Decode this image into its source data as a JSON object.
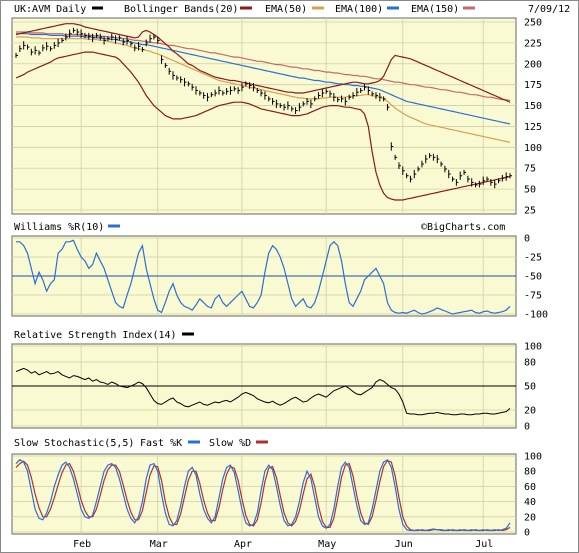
{
  "header": {
    "symbol": "UK:AVM",
    "period": "Daily",
    "date": "7/09/12",
    "watermark": "©BigCharts.com"
  },
  "legend": {
    "price": {
      "label": "UK:AVM Daily",
      "color": "#000000"
    },
    "bollinger": {
      "label": "Bollinger Bands(20)",
      "color": "#8b1a1a"
    },
    "ema50": {
      "label": "EMA(50)",
      "color": "#d9a050"
    },
    "ema100": {
      "label": "EMA(100)",
      "color": "#2a6fd6"
    },
    "ema150": {
      "label": "EMA(150)",
      "color": "#c46a6a"
    }
  },
  "colors": {
    "panel_bg": "#fafad2",
    "grid": "#cfcfa8",
    "price": "#000000",
    "bollinger": "#8b1a1a",
    "ema50": "#d9a050",
    "ema100": "#2a6fd6",
    "ema150": "#c46a6a",
    "williams": "#2a6fd6",
    "rsi": "#000000",
    "stoch_k": "#2a6fd6",
    "stoch_d": "#b03030",
    "ref_line": "#1f4fa0"
  },
  "x_axis": {
    "labels": [
      "Feb",
      "Mar",
      "Apr",
      "May",
      "Jun",
      "Jul"
    ],
    "label_day_index": [
      17,
      37,
      59,
      81,
      101,
      122
    ],
    "total_days": 130
  },
  "chart_data": [
    {
      "type": "line",
      "name": "price",
      "ylim": [
        25,
        250
      ],
      "y_ticks": [
        250,
        225,
        200,
        175,
        150,
        125,
        100,
        75,
        50,
        25
      ],
      "close": [
        210,
        218,
        222,
        220,
        214,
        216,
        213,
        219,
        221,
        218,
        222,
        225,
        228,
        232,
        236,
        240,
        238,
        236,
        234,
        233,
        231,
        234,
        232,
        228,
        230,
        232,
        229,
        231,
        226,
        228,
        224,
        219,
        221,
        217,
        225,
        230,
        232,
        228,
        205,
        198,
        191,
        186,
        183,
        181,
        178,
        176,
        172,
        168,
        165,
        162,
        160,
        163,
        165,
        168,
        165,
        167,
        168,
        170,
        168,
        172,
        176,
        174,
        172,
        168,
        165,
        162,
        158,
        155,
        152,
        150,
        148,
        150,
        146,
        144,
        148,
        152,
        155,
        152,
        158,
        162,
        165,
        167,
        164,
        160,
        157,
        158,
        155,
        160,
        162,
        166,
        168,
        172,
        168,
        164,
        162,
        160,
        158,
        148,
        101,
        88,
        78,
        72,
        66,
        62,
        68,
        74,
        80,
        86,
        90,
        88,
        86,
        80,
        74,
        68,
        62,
        58,
        66,
        70,
        62,
        58,
        55,
        56,
        60,
        62,
        58,
        56,
        60,
        63,
        65,
        66
      ],
      "bollinger_upper": [
        235,
        236,
        237,
        238,
        239,
        240,
        241,
        242,
        243,
        244,
        245,
        246,
        247,
        248,
        248,
        248,
        247,
        246,
        244,
        243,
        242,
        241,
        240,
        239,
        238,
        237,
        236,
        235,
        234,
        233,
        232,
        231,
        232,
        238,
        240,
        238,
        235,
        232,
        228,
        224,
        220,
        215,
        212,
        208,
        204,
        200,
        198,
        195,
        192,
        190,
        188,
        186,
        184,
        183,
        182,
        181,
        180,
        180,
        179,
        178,
        177,
        176,
        175,
        174,
        173,
        172,
        171,
        170,
        169,
        168,
        167,
        166,
        166,
        165,
        165,
        165,
        166,
        167,
        168,
        169,
        170,
        171,
        172,
        173,
        174,
        175,
        176,
        177,
        178,
        178,
        177,
        176,
        176,
        177,
        178,
        180,
        185,
        195,
        205,
        210,
        209,
        208,
        207,
        206,
        204,
        202,
        200,
        198,
        196,
        194,
        192,
        190,
        188,
        186,
        184,
        182,
        180,
        178,
        176,
        174,
        172,
        170,
        168,
        166,
        164,
        162,
        160,
        158,
        156,
        154
      ],
      "bollinger_lower": [
        183,
        185,
        187,
        190,
        192,
        194,
        196,
        198,
        200,
        202,
        205,
        207,
        208,
        209,
        210,
        211,
        212,
        213,
        214,
        214,
        214,
        213,
        212,
        211,
        210,
        209,
        208,
        205,
        200,
        195,
        190,
        184,
        178,
        170,
        162,
        156,
        150,
        146,
        142,
        138,
        136,
        134,
        134,
        134,
        135,
        136,
        137,
        138,
        140,
        142,
        144,
        146,
        148,
        150,
        151,
        152,
        153,
        154,
        154,
        154,
        153,
        152,
        150,
        148,
        146,
        145,
        144,
        143,
        142,
        141,
        140,
        139,
        138,
        138,
        138,
        139,
        140,
        142,
        144,
        146,
        148,
        149,
        150,
        150,
        150,
        149,
        148,
        148,
        147,
        146,
        145,
        140,
        125,
        95,
        70,
        55,
        45,
        40,
        38,
        37,
        37,
        37,
        38,
        39,
        40,
        41,
        42,
        43,
        44,
        45,
        46,
        47,
        48,
        49,
        50,
        51,
        52,
        53,
        54,
        55,
        56,
        57,
        58,
        59,
        60,
        61,
        62,
        63,
        64,
        65
      ],
      "ema50": [
        232,
        232,
        232,
        232,
        231,
        231,
        231,
        230,
        230,
        230,
        230,
        230,
        230,
        230,
        230,
        230,
        230,
        230,
        230,
        229,
        229,
        229,
        228,
        228,
        227,
        226,
        225,
        224,
        223,
        222,
        220,
        219,
        218,
        217,
        216,
        215,
        213,
        212,
        210,
        208,
        206,
        204,
        202,
        200,
        198,
        196,
        194,
        192,
        190,
        188,
        186,
        184,
        182,
        180,
        179,
        178,
        177,
        176,
        175,
        174,
        173,
        172,
        171,
        170,
        169,
        168,
        167,
        166,
        165,
        164,
        163,
        162,
        161,
        160,
        159,
        159,
        158,
        158,
        158,
        158,
        159,
        159,
        160,
        160,
        160,
        160,
        160,
        161,
        161,
        162,
        162,
        163,
        163,
        162,
        161,
        160,
        158,
        155,
        151,
        147,
        144,
        141,
        138,
        136,
        134,
        132,
        130,
        128,
        127,
        126,
        125,
        124,
        123,
        122,
        121,
        120,
        119,
        118,
        117,
        116,
        115,
        114,
        113,
        112,
        111,
        110,
        109,
        108,
        107,
        106
      ],
      "ema100": [
        236,
        236,
        236,
        236,
        235,
        235,
        235,
        235,
        235,
        234,
        234,
        234,
        234,
        233,
        233,
        233,
        233,
        233,
        232,
        232,
        232,
        231,
        231,
        230,
        230,
        229,
        229,
        228,
        227,
        227,
        226,
        225,
        224,
        223,
        223,
        222,
        221,
        220,
        219,
        218,
        217,
        216,
        215,
        214,
        213,
        212,
        211,
        210,
        209,
        208,
        207,
        206,
        205,
        204,
        203,
        202,
        201,
        200,
        199,
        198,
        197,
        196,
        195,
        194,
        193,
        192,
        191,
        190,
        189,
        188,
        187,
        186,
        185,
        184,
        183,
        183,
        182,
        181,
        180,
        180,
        179,
        178,
        178,
        177,
        176,
        176,
        175,
        175,
        174,
        174,
        173,
        173,
        172,
        171,
        170,
        169,
        167,
        165,
        163,
        161,
        159,
        157,
        155,
        154,
        153,
        152,
        151,
        150,
        149,
        148,
        147,
        146,
        145,
        144,
        143,
        142,
        141,
        140,
        139,
        138,
        137,
        136,
        135,
        134,
        133,
        132,
        131,
        130,
        129,
        128
      ],
      "ema150": [
        238,
        238,
        238,
        238,
        237,
        237,
        237,
        237,
        236,
        236,
        236,
        236,
        236,
        235,
        235,
        235,
        235,
        235,
        234,
        234,
        234,
        233,
        233,
        233,
        232,
        232,
        231,
        231,
        230,
        230,
        229,
        228,
        228,
        227,
        227,
        226,
        225,
        225,
        224,
        223,
        222,
        222,
        221,
        220,
        219,
        218,
        218,
        217,
        216,
        215,
        214,
        213,
        213,
        212,
        211,
        210,
        209,
        208,
        208,
        207,
        206,
        205,
        204,
        203,
        203,
        202,
        201,
        200,
        199,
        199,
        198,
        197,
        196,
        196,
        195,
        194,
        194,
        193,
        192,
        192,
        191,
        190,
        190,
        189,
        189,
        188,
        187,
        187,
        186,
        186,
        185,
        185,
        184,
        183,
        182,
        182,
        181,
        180,
        179,
        178,
        178,
        177,
        176,
        175,
        175,
        174,
        173,
        172,
        172,
        171,
        170,
        169,
        169,
        168,
        167,
        166,
        166,
        165,
        164,
        163,
        163,
        162,
        161,
        160,
        160,
        159,
        158,
        157,
        157,
        156
      ]
    },
    {
      "type": "line",
      "name": "williams",
      "title": "Williams %R(10)",
      "ylim": [
        -100,
        0
      ],
      "y_ticks": [
        0,
        -25,
        -50,
        -75,
        -100
      ],
      "ref_line": -50,
      "values": [
        -5,
        -5,
        -10,
        -20,
        -40,
        -60,
        -45,
        -55,
        -70,
        -60,
        -55,
        -20,
        -15,
        -5,
        -5,
        -3,
        -15,
        -25,
        -30,
        -40,
        -35,
        -20,
        -30,
        -40,
        -55,
        -70,
        -85,
        -90,
        -92,
        -75,
        -60,
        -40,
        -20,
        -10,
        -40,
        -60,
        -80,
        -95,
        -98,
        -85,
        -70,
        -60,
        -75,
        -85,
        -90,
        -92,
        -95,
        -88,
        -80,
        -85,
        -90,
        -92,
        -80,
        -75,
        -85,
        -90,
        -85,
        -80,
        -75,
        -70,
        -80,
        -90,
        -92,
        -85,
        -75,
        -45,
        -20,
        -10,
        -15,
        -25,
        -40,
        -60,
        -80,
        -90,
        -85,
        -80,
        -90,
        -92,
        -85,
        -70,
        -50,
        -30,
        -10,
        -5,
        -10,
        -30,
        -60,
        -85,
        -90,
        -80,
        -70,
        -55,
        -50,
        -45,
        -40,
        -50,
        -60,
        -85,
        -95,
        -98,
        -99,
        -98,
        -99,
        -97,
        -95,
        -98,
        -100,
        -99,
        -97,
        -95,
        -92,
        -94,
        -96,
        -98,
        -100,
        -99,
        -98,
        -97,
        -96,
        -95,
        -98,
        -99,
        -97,
        -96,
        -98,
        -99,
        -98,
        -97,
        -95,
        -90
      ]
    },
    {
      "type": "line",
      "name": "rsi",
      "title": "Relative Strength Index(14)",
      "ylim": [
        0,
        100
      ],
      "y_ticks": [
        100,
        80,
        50,
        20,
        0
      ],
      "ref_line": 50,
      "values": [
        68,
        70,
        72,
        70,
        66,
        68,
        64,
        66,
        68,
        65,
        66,
        68,
        64,
        62,
        60,
        63,
        62,
        60,
        58,
        60,
        56,
        58,
        55,
        54,
        52,
        55,
        53,
        50,
        49,
        48,
        50,
        52,
        55,
        53,
        48,
        40,
        32,
        28,
        27,
        30,
        33,
        35,
        30,
        28,
        25,
        24,
        26,
        28,
        30,
        27,
        26,
        28,
        30,
        29,
        31,
        32,
        30,
        33,
        36,
        40,
        42,
        40,
        38,
        34,
        32,
        30,
        29,
        31,
        28,
        26,
        28,
        31,
        34,
        36,
        33,
        30,
        31,
        35,
        38,
        40,
        38,
        36,
        40,
        44,
        46,
        48,
        50,
        47,
        43,
        40,
        39,
        42,
        45,
        48,
        55,
        58,
        56,
        52,
        48,
        46,
        40,
        30,
        16,
        15,
        15,
        14,
        14,
        15,
        16,
        16,
        17,
        16,
        15,
        15,
        14,
        14,
        15,
        15,
        14,
        14,
        15,
        15,
        16,
        16,
        15,
        15,
        16,
        17,
        18,
        22
      ]
    },
    {
      "type": "line",
      "name": "stochastic",
      "title": "Slow Stochastic(5,5)",
      "ylim": [
        0,
        100
      ],
      "y_ticks": [
        100,
        80,
        60,
        40,
        20,
        0
      ],
      "series": [
        {
          "name": "Fast %K",
          "values": [
            90,
            95,
            92,
            80,
            55,
            30,
            18,
            16,
            25,
            40,
            60,
            75,
            88,
            92,
            85,
            70,
            50,
            30,
            20,
            18,
            22,
            40,
            60,
            80,
            88,
            90,
            85,
            70,
            50,
            30,
            18,
            12,
            20,
            40,
            70,
            88,
            90,
            80,
            50,
            25,
            10,
            8,
            15,
            35,
            60,
            80,
            85,
            75,
            50,
            30,
            18,
            12,
            20,
            45,
            70,
            85,
            88,
            78,
            55,
            30,
            12,
            8,
            10,
            25,
            55,
            80,
            88,
            82,
            60,
            35,
            15,
            8,
            10,
            20,
            40,
            65,
            80,
            70,
            45,
            20,
            8,
            5,
            10,
            30,
            60,
            85,
            92,
            85,
            60,
            35,
            15,
            10,
            12,
            30,
            55,
            80,
            92,
            95,
            85,
            60,
            30,
            10,
            3,
            2,
            2,
            3,
            2,
            2,
            3,
            4,
            3,
            2,
            2,
            3,
            2,
            2,
            3,
            2,
            2,
            3,
            2,
            2,
            3,
            2,
            2,
            3,
            2,
            3,
            5,
            12
          ]
        },
        {
          "name": "Slow %D",
          "values": [
            85,
            90,
            93,
            88,
            72,
            50,
            32,
            20,
            20,
            30,
            45,
            62,
            78,
            88,
            90,
            80,
            62,
            42,
            28,
            20,
            20,
            30,
            48,
            68,
            82,
            88,
            88,
            80,
            62,
            42,
            26,
            16,
            16,
            28,
            52,
            75,
            87,
            86,
            68,
            40,
            20,
            10,
            10,
            24,
            46,
            68,
            80,
            80,
            64,
            42,
            25,
            15,
            15,
            32,
            56,
            76,
            86,
            84,
            68,
            44,
            22,
            10,
            8,
            16,
            38,
            66,
            84,
            86,
            72,
            48,
            25,
            12,
            8,
            14,
            28,
            50,
            70,
            76,
            60,
            34,
            14,
            6,
            6,
            18,
            44,
            72,
            88,
            90,
            74,
            48,
            25,
            12,
            10,
            20,
            42,
            66,
            86,
            94,
            92,
            74,
            46,
            20,
            8,
            3,
            2,
            2,
            3,
            2,
            2,
            3,
            3,
            3,
            2,
            2,
            3,
            2,
            2,
            3,
            2,
            2,
            3,
            2,
            2,
            3,
            2,
            2,
            3,
            2,
            3,
            6
          ]
        }
      ]
    }
  ]
}
